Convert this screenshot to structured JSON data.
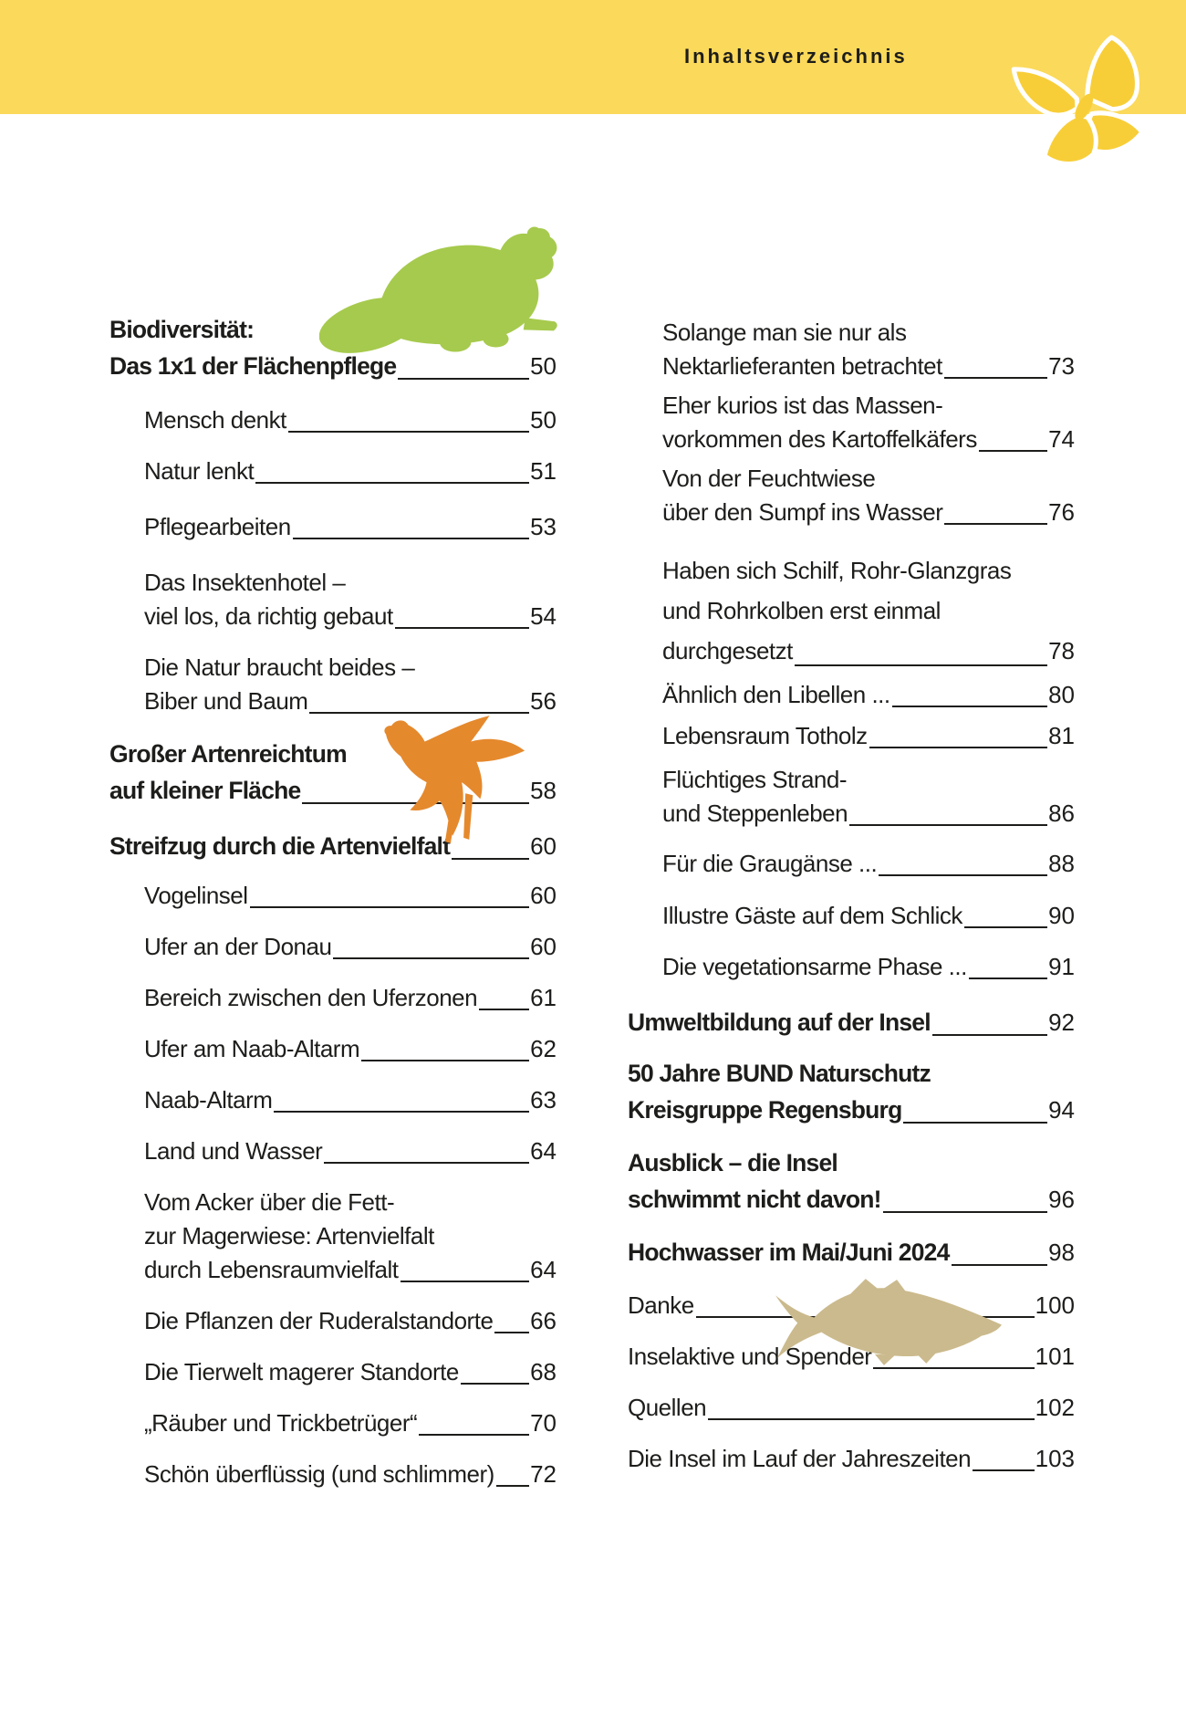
{
  "header": {
    "title": "Inhaltsverzeichnis"
  },
  "colors": {
    "band": "#FBD95A",
    "text": "#1D1D1B"
  },
  "decorations": {
    "butterfly": {
      "icon": "butterfly-icon",
      "color": "#F8CE38"
    },
    "beaver": {
      "icon": "beaver-icon",
      "color": "#A6CA4D"
    },
    "duck": {
      "icon": "flying-duck-icon",
      "color": "#E5892D"
    },
    "fish": {
      "icon": "fish-icon",
      "color": "#CBBA8D"
    }
  },
  "toc": {
    "left_column": [
      {
        "style": "heading",
        "indent": false,
        "lines": [
          "Biodiversität:",
          "Das 1x1 der Flächenpflege"
        ],
        "page": "50"
      },
      {
        "style": "entry",
        "indent": true,
        "lines": [
          "Mensch denkt"
        ],
        "page": "50"
      },
      {
        "style": "entry",
        "indent": true,
        "lines": [
          "Natur lenkt"
        ],
        "page": "51"
      },
      {
        "style": "entry",
        "indent": true,
        "lines": [
          "Pflegearbeiten"
        ],
        "page": "53"
      },
      {
        "style": "entry",
        "indent": true,
        "lines": [
          "Das Insektenhotel –",
          "viel los, da richtig gebaut"
        ],
        "page": "54"
      },
      {
        "style": "entry",
        "indent": true,
        "lines": [
          "Die Natur braucht beides –",
          "Biber und Baum"
        ],
        "page": "56"
      },
      {
        "style": "heading",
        "indent": false,
        "lines": [
          "Großer Artenreichtum",
          "auf kleiner Fläche"
        ],
        "page": "58"
      },
      {
        "style": "heading",
        "indent": false,
        "lines": [
          "Streifzug durch die Artenvielfalt"
        ],
        "page": "60"
      },
      {
        "style": "entry",
        "indent": true,
        "lines": [
          "Vogelinsel"
        ],
        "page": "60"
      },
      {
        "style": "entry",
        "indent": true,
        "lines": [
          "Ufer an der Donau"
        ],
        "page": "60"
      },
      {
        "style": "entry",
        "indent": true,
        "lines": [
          "Bereich zwischen den Uferzonen"
        ],
        "page": "61"
      },
      {
        "style": "entry",
        "indent": true,
        "lines": [
          "Ufer am Naab-Altarm"
        ],
        "page": "62"
      },
      {
        "style": "entry",
        "indent": true,
        "lines": [
          "Naab-Altarm"
        ],
        "page": "63"
      },
      {
        "style": "entry",
        "indent": true,
        "lines": [
          "Land und Wasser"
        ],
        "page": "64"
      },
      {
        "style": "entry",
        "indent": true,
        "lines": [
          "Vom Acker über die Fett-",
          "zur Magerwiese: Artenvielfalt",
          "durch Lebensraumvielfalt"
        ],
        "page": "64"
      },
      {
        "style": "entry",
        "indent": true,
        "lines": [
          "Die Pflanzen der Ruderalstandorte"
        ],
        "page": "66"
      },
      {
        "style": "entry",
        "indent": true,
        "lines": [
          "Die Tierwelt magerer Standorte"
        ],
        "page": "68"
      },
      {
        "style": "entry",
        "indent": true,
        "lines": [
          "„Räuber und Trickbetrüger“"
        ],
        "page": "70"
      },
      {
        "style": "entry",
        "indent": true,
        "lines": [
          "Schön überflüssig (und schlimmer)"
        ],
        "page": "72"
      }
    ],
    "right_column": [
      {
        "style": "entry",
        "indent": true,
        "lines": [
          "Solange man sie nur als",
          "Nektarlieferanten betrachtet"
        ],
        "page": "73"
      },
      {
        "style": "entry",
        "indent": true,
        "lines": [
          "Eher kurios ist das Massen-",
          "vorkommen des Kartoffelkäfers"
        ],
        "page": "74"
      },
      {
        "style": "entry",
        "indent": true,
        "lines": [
          "Von der Feuchtwiese",
          "über den Sumpf ins Wasser"
        ],
        "page": "76"
      },
      {
        "style": "entry",
        "indent": true,
        "lines": [
          "Haben sich Schilf, Rohr-Glanzgras",
          "und Rohrkolben erst einmal",
          "durchgesetzt"
        ],
        "page": "78"
      },
      {
        "style": "entry",
        "indent": true,
        "lines": [
          "Ähnlich den Libellen ..."
        ],
        "page": "80"
      },
      {
        "style": "entry",
        "indent": true,
        "lines": [
          "Lebensraum Totholz"
        ],
        "page": "81"
      },
      {
        "style": "entry",
        "indent": true,
        "lines": [
          "Flüchtiges Strand-",
          "und Steppenleben"
        ],
        "page": "86"
      },
      {
        "style": "entry",
        "indent": true,
        "lines": [
          "Für die Graugänse ..."
        ],
        "page": "88"
      },
      {
        "style": "entry",
        "indent": true,
        "lines": [
          "Illustre Gäste auf dem Schlick"
        ],
        "page": "90"
      },
      {
        "style": "entry",
        "indent": true,
        "lines": [
          "Die vegetationsarme Phase ..."
        ],
        "page": "91"
      },
      {
        "style": "heading",
        "indent": false,
        "lines": [
          "Umweltbildung auf der Insel"
        ],
        "page": "92"
      },
      {
        "style": "heading",
        "indent": false,
        "lines": [
          "50 Jahre BUND Naturschutz",
          "Kreisgruppe Regensburg"
        ],
        "page": "94"
      },
      {
        "style": "heading",
        "indent": false,
        "lines": [
          "Ausblick – die Insel",
          "schwimmt nicht davon!"
        ],
        "page": "96"
      },
      {
        "style": "heading",
        "indent": false,
        "lines": [
          "Hochwasser im Mai/Juni 2024"
        ],
        "page": "98"
      },
      {
        "style": "entry",
        "indent": false,
        "lines": [
          "Danke"
        ],
        "page": "100"
      },
      {
        "style": "entry",
        "indent": false,
        "lines": [
          "Inselaktive und Spender"
        ],
        "page": "101"
      },
      {
        "style": "entry",
        "indent": false,
        "lines": [
          "Quellen"
        ],
        "page": "102"
      },
      {
        "style": "entry",
        "indent": false,
        "lines": [
          "Die Insel im Lauf der Jahreszeiten"
        ],
        "page": "103"
      }
    ]
  }
}
